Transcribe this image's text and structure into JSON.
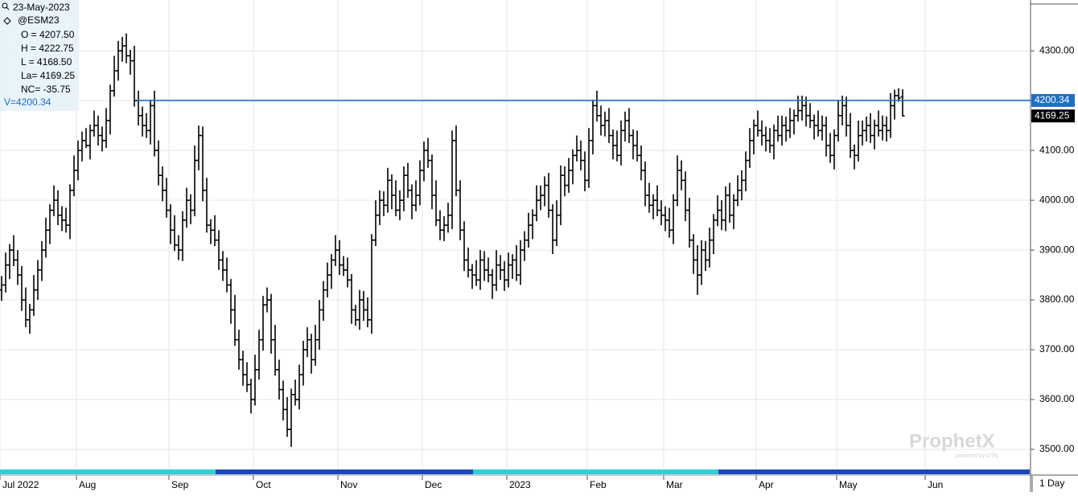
{
  "chart_data": {
    "type": "ohlc",
    "date": "23-May-2023",
    "symbol": "@ESM23",
    "info": [
      "O = 4207.50",
      "H = 4222.75",
      "L = 4168.50",
      "La= 4169.25",
      "NC= -35.75"
    ],
    "cursor_label": "V=4200.34",
    "hline_value": 4200.34,
    "timeframe": "1 Day",
    "watermark": "ProphetX",
    "watermark_sub": "powered by DTN",
    "color": "#000000",
    "hline_color": "#1f6fc5",
    "grid": true,
    "ylim": [
      3458,
      4402
    ],
    "yticks": [
      {
        "value": 3500,
        "label": "3500.00"
      },
      {
        "value": 3600,
        "label": "3600.00"
      },
      {
        "value": 3700,
        "label": "3700.00"
      },
      {
        "value": 3800,
        "label": "3800.00"
      },
      {
        "value": 3900,
        "label": "3900.00"
      },
      {
        "value": 4000,
        "label": "4000.00"
      },
      {
        "value": 4100,
        "label": "4100.00"
      },
      {
        "value": 4200,
        "label": "4200.00"
      },
      {
        "value": 4300,
        "label": "4300.00"
      }
    ],
    "categories": [
      "Jul 2022",
      null,
      null,
      null,
      null,
      null,
      null,
      null,
      null,
      null,
      null,
      null,
      null,
      null,
      null,
      null,
      null,
      null,
      null,
      "Aug",
      null,
      null,
      null,
      null,
      null,
      null,
      null,
      null,
      null,
      null,
      null,
      null,
      null,
      null,
      null,
      null,
      null,
      null,
      null,
      null,
      null,
      null,
      "Sep",
      null,
      null,
      null,
      null,
      null,
      null,
      null,
      null,
      null,
      null,
      null,
      null,
      null,
      null,
      null,
      null,
      null,
      null,
      null,
      null,
      "Oct",
      null,
      null,
      null,
      null,
      null,
      null,
      null,
      null,
      null,
      null,
      null,
      null,
      null,
      null,
      null,
      null,
      null,
      null,
      null,
      null,
      "Nov",
      null,
      null,
      null,
      null,
      null,
      null,
      null,
      null,
      null,
      null,
      null,
      null,
      null,
      null,
      null,
      null,
      null,
      null,
      null,
      null,
      "Dec",
      null,
      null,
      null,
      null,
      null,
      null,
      null,
      null,
      null,
      null,
      null,
      null,
      null,
      null,
      null,
      null,
      null,
      null,
      null,
      null,
      "2023",
      null,
      null,
      null,
      null,
      null,
      null,
      null,
      null,
      null,
      null,
      null,
      null,
      null,
      null,
      null,
      null,
      null,
      null,
      null,
      "Feb",
      null,
      null,
      null,
      null,
      null,
      null,
      null,
      null,
      null,
      null,
      null,
      null,
      null,
      null,
      null,
      null,
      null,
      null,
      "Mar",
      null,
      null,
      null,
      null,
      null,
      null,
      null,
      null,
      null,
      null,
      null,
      null,
      null,
      null,
      null,
      null,
      null,
      null,
      null,
      null,
      null,
      null,
      "Apr",
      null,
      null,
      null,
      null,
      null,
      null,
      null,
      null,
      null,
      null,
      null,
      null,
      null,
      null,
      null,
      null,
      null,
      null,
      null,
      "May",
      null,
      null,
      null,
      null,
      null,
      null,
      null,
      null,
      null,
      null,
      null,
      null,
      null,
      null,
      null,
      null,
      null,
      null,
      null,
      null,
      null,
      "Jun"
    ],
    "open": [
      3820,
      3830,
      3870,
      3900,
      3880,
      3850,
      3800,
      3760,
      3780,
      3820,
      3860,
      3900,
      3940,
      3980,
      4000,
      3970,
      3960,
      3950,
      4020,
      4060,
      4100,
      4120,
      4110,
      4140,
      4150,
      4130,
      4120,
      4160,
      4220,
      4260,
      4300,
      4310,
      4290,
      4280,
      4200,
      4170,
      4150,
      4140,
      4190,
      4100,
      4050,
      4020,
      3980,
      3940,
      3910,
      3900,
      3960,
      4000,
      3980,
      4080,
      4130,
      4020,
      3950,
      3940,
      3920,
      3880,
      3860,
      3830,
      3780,
      3720,
      3680,
      3650,
      3630,
      3600,
      3660,
      3720,
      3790,
      3800,
      3720,
      3660,
      3620,
      3580,
      3540,
      3610,
      3600,
      3650,
      3700,
      3720,
      3680,
      3720,
      3780,
      3820,
      3850,
      3880,
      3900,
      3870,
      3860,
      3840,
      3780,
      3760,
      3800,
      3780,
      3760,
      3920,
      3970,
      4000,
      3990,
      4040,
      4010,
      3980,
      4000,
      4050,
      4020,
      3990,
      4010,
      4060,
      4100,
      4080,
      4010,
      3960,
      3940,
      3950,
      3970,
      4120,
      4020,
      3940,
      3880,
      3860,
      3850,
      3840,
      3880,
      3860,
      3850,
      3830,
      3870,
      3860,
      3840,
      3870,
      3880,
      3850,
      3900,
      3920,
      3950,
      3970,
      4000,
      4010,
      4030,
      3980,
      3920,
      3970,
      4050,
      4030,
      4060,
      4090,
      4100,
      4080,
      4040,
      4120,
      4190,
      4170,
      4150,
      4160,
      4130,
      4110,
      4090,
      4140,
      4160,
      4130,
      4110,
      4090,
      4060,
      4010,
      3990,
      4000,
      3980,
      3970,
      3960,
      3940,
      4000,
      4060,
      4040,
      3980,
      3920,
      3880,
      3850,
      3900,
      3880,
      3920,
      3960,
      3980,
      3960,
      4010,
      3970,
      4000,
      4020,
      4040,
      4080,
      4120,
      4150,
      4140,
      4130,
      4120,
      4110,
      4140,
      4130,
      4150,
      4140,
      4160,
      4170,
      4180,
      4190,
      4170,
      4160,
      4150,
      4140,
      4150,
      4110,
      4090,
      4130,
      4170,
      4190,
      4150,
      4100,
      4090,
      4130,
      4140,
      4150,
      4130,
      4150,
      4140,
      4150,
      4140,
      4190,
      4210,
      4207.5,
      null,
      null,
      null,
      null,
      null,
      null
    ],
    "high": [
      3848,
      3895,
      3912,
      3930,
      3900,
      3868,
      3825,
      3792,
      3850,
      3880,
      3918,
      3965,
      3992,
      4030,
      4020,
      3988,
      3985,
      4032,
      4090,
      4120,
      4138,
      4145,
      4152,
      4180,
      4170,
      4148,
      4185,
      4232,
      4290,
      4320,
      4328,
      4335,
      4302,
      4310,
      4220,
      4188,
      4175,
      4202,
      4220,
      4120,
      4068,
      4045,
      3992,
      3970,
      3930,
      3978,
      4025,
      4012,
      4110,
      4150,
      4148,
      4045,
      3962,
      3970,
      3940,
      3898,
      3885,
      3842,
      3810,
      3740,
      3698,
      3675,
      3642,
      3690,
      3740,
      3808,
      3825,
      3812,
      3750,
      3680,
      3638,
      3605,
      3622,
      3640,
      3670,
      3718,
      3745,
      3732,
      3750,
      3800,
      3838,
      3875,
      3892,
      3930,
      3920,
      3888,
      3885,
      3852,
      3790,
      3820,
      3818,
      3805,
      3932,
      4000,
      4020,
      4018,
      4065,
      4052,
      4040,
      4020,
      4068,
      4075,
      4032,
      4040,
      4080,
      4118,
      4125,
      4092,
      4040,
      3980,
      3968,
      3995,
      4140,
      4150,
      4040,
      3958,
      3905,
      3872,
      3880,
      3900,
      3898,
      3885,
      3862,
      3900,
      3890,
      3878,
      3895,
      3892,
      3910,
      3920,
      3938,
      3975,
      3982,
      4030,
      4030,
      4048,
      4055,
      3992,
      4000,
      4070,
      4068,
      4085,
      4102,
      4130,
      4120,
      4098,
      4145,
      4202,
      4220,
      4190,
      4178,
      4185,
      4142,
      4140,
      4160,
      4178,
      4185,
      4142,
      4140,
      4110,
      4078,
      4035,
      4012,
      4030,
      4000,
      3988,
      3985,
      4012,
      4090,
      4080,
      4058,
      4005,
      3932,
      3910,
      3920,
      3918,
      3945,
      3972,
      4010,
      4000,
      4028,
      4035,
      4012,
      4050,
      4060,
      4098,
      4145,
      4162,
      4180,
      4160,
      4148,
      4145,
      4152,
      4170,
      4170,
      4168,
      4185,
      4182,
      4210,
      4210,
      4208,
      4195,
      4172,
      4180,
      4170,
      4168,
      4135,
      4142,
      4200,
      4210,
      4208,
      4175,
      4112,
      4160,
      4160,
      4168,
      4175,
      4162,
      4180,
      4170,
      4168,
      4215,
      4222,
      4225,
      4222.75,
      null,
      null,
      null,
      null,
      null,
      null
    ],
    "low": [
      3798,
      3815,
      3842,
      3868,
      3830,
      3778,
      3745,
      3732,
      3768,
      3800,
      3838,
      3885,
      3912,
      3968,
      3950,
      3938,
      3935,
      3922,
      4008,
      4040,
      4078,
      4105,
      4082,
      4128,
      4110,
      4098,
      4105,
      4132,
      4208,
      4240,
      4278,
      4275,
      4252,
      4188,
      4150,
      4128,
      4125,
      4112,
      4088,
      4030,
      3998,
      3965,
      3912,
      3898,
      3880,
      3878,
      3945,
      3952,
      3968,
      4060,
      3998,
      3935,
      3912,
      3908,
      3860,
      3838,
      3815,
      3752,
      3708,
      3660,
      3628,
      3615,
      3572,
      3588,
      3640,
      3698,
      3775,
      3692,
      3648,
      3600,
      3558,
      3525,
      3505,
      3588,
      3580,
      3628,
      3685,
      3652,
      3668,
      3700,
      3758,
      3805,
      3822,
      3868,
      3850,
      3848,
      3825,
      3752,
      3748,
      3740,
      3758,
      3745,
      3732,
      3908,
      3950,
      3968,
      3975,
      3982,
      3968,
      3960,
      3978,
      4005,
      3962,
      3978,
      3990,
      4038,
      4065,
      3982,
      3948,
      3920,
      3918,
      3935,
      3942,
      4008,
      3920,
      3858,
      3845,
      3822,
      3828,
      3820,
      3838,
      3835,
      3802,
      3818,
      3840,
      3818,
      3825,
      3842,
      3838,
      3830,
      3878,
      3905,
      3922,
      3958,
      3980,
      3988,
      3965,
      3892,
      3908,
      3950,
      4008,
      4015,
      4032,
      4078,
      4060,
      4018,
      4025,
      4092,
      4158,
      4130,
      4128,
      4115,
      4082,
      4078,
      4070,
      4118,
      4115,
      4082,
      4078,
      4040,
      3988,
      3975,
      3962,
      3968,
      3950,
      3938,
      3925,
      3912,
      3988,
      4020,
      3958,
      3905,
      3852,
      3810,
      3830,
      3858,
      3865,
      3892,
      3948,
      3940,
      3938,
      3955,
      3942,
      3988,
      4000,
      4018,
      4065,
      4092,
      4128,
      4110,
      4098,
      4095,
      4082,
      4118,
      4110,
      4118,
      4125,
      4132,
      4158,
      4160,
      4148,
      4145,
      4122,
      4128,
      4120,
      4088,
      4075,
      4062,
      4118,
      4150,
      4128,
      4085,
      4062,
      4078,
      4110,
      4118,
      4115,
      4102,
      4128,
      4120,
      4118,
      4125,
      4162,
      4198,
      4168.5,
      null,
      null,
      null,
      null,
      null,
      null
    ],
    "close": [
      3830,
      3870,
      3900,
      3880,
      3850,
      3800,
      3760,
      3780,
      3820,
      3860,
      3900,
      3940,
      3980,
      4000,
      3970,
      3960,
      3950,
      4020,
      4060,
      4100,
      4120,
      4110,
      4140,
      4150,
      4130,
      4120,
      4160,
      4220,
      4260,
      4300,
      4310,
      4290,
      4280,
      4200,
      4170,
      4150,
      4140,
      4190,
      4100,
      4050,
      4020,
      3980,
      3940,
      3910,
      3900,
      3960,
      4000,
      3980,
      4080,
      4130,
      4020,
      3950,
      3940,
      3920,
      3880,
      3860,
      3830,
      3780,
      3720,
      3680,
      3650,
      3630,
      3600,
      3660,
      3720,
      3790,
      3800,
      3720,
      3660,
      3620,
      3580,
      3540,
      3610,
      3600,
      3650,
      3700,
      3720,
      3680,
      3720,
      3780,
      3820,
      3850,
      3880,
      3900,
      3870,
      3860,
      3840,
      3780,
      3760,
      3800,
      3780,
      3760,
      3920,
      3970,
      4000,
      3990,
      4040,
      4010,
      3980,
      4000,
      4050,
      4020,
      3990,
      4010,
      4060,
      4100,
      4080,
      4010,
      3960,
      3940,
      3950,
      3970,
      4120,
      4020,
      3940,
      3880,
      3860,
      3850,
      3840,
      3880,
      3860,
      3850,
      3830,
      3870,
      3860,
      3840,
      3870,
      3880,
      3850,
      3900,
      3920,
      3950,
      3970,
      4000,
      4010,
      4030,
      3980,
      3920,
      3970,
      4050,
      4030,
      4060,
      4090,
      4100,
      4080,
      4040,
      4120,
      4190,
      4170,
      4150,
      4160,
      4130,
      4110,
      4090,
      4140,
      4160,
      4130,
      4110,
      4090,
      4060,
      4010,
      3990,
      4000,
      3980,
      3970,
      3960,
      3940,
      4000,
      4060,
      4040,
      3980,
      3920,
      3880,
      3850,
      3900,
      3880,
      3920,
      3960,
      3980,
      3960,
      4010,
      3970,
      4000,
      4020,
      4040,
      4080,
      4120,
      4150,
      4140,
      4130,
      4120,
      4110,
      4140,
      4130,
      4150,
      4140,
      4160,
      4170,
      4180,
      4190,
      4170,
      4160,
      4150,
      4140,
      4150,
      4110,
      4090,
      4130,
      4170,
      4190,
      4150,
      4100,
      4090,
      4130,
      4140,
      4150,
      4130,
      4150,
      4140,
      4150,
      4140,
      4190,
      4210,
      4205,
      4169.25,
      null,
      null,
      null,
      null,
      null,
      null
    ]
  }
}
